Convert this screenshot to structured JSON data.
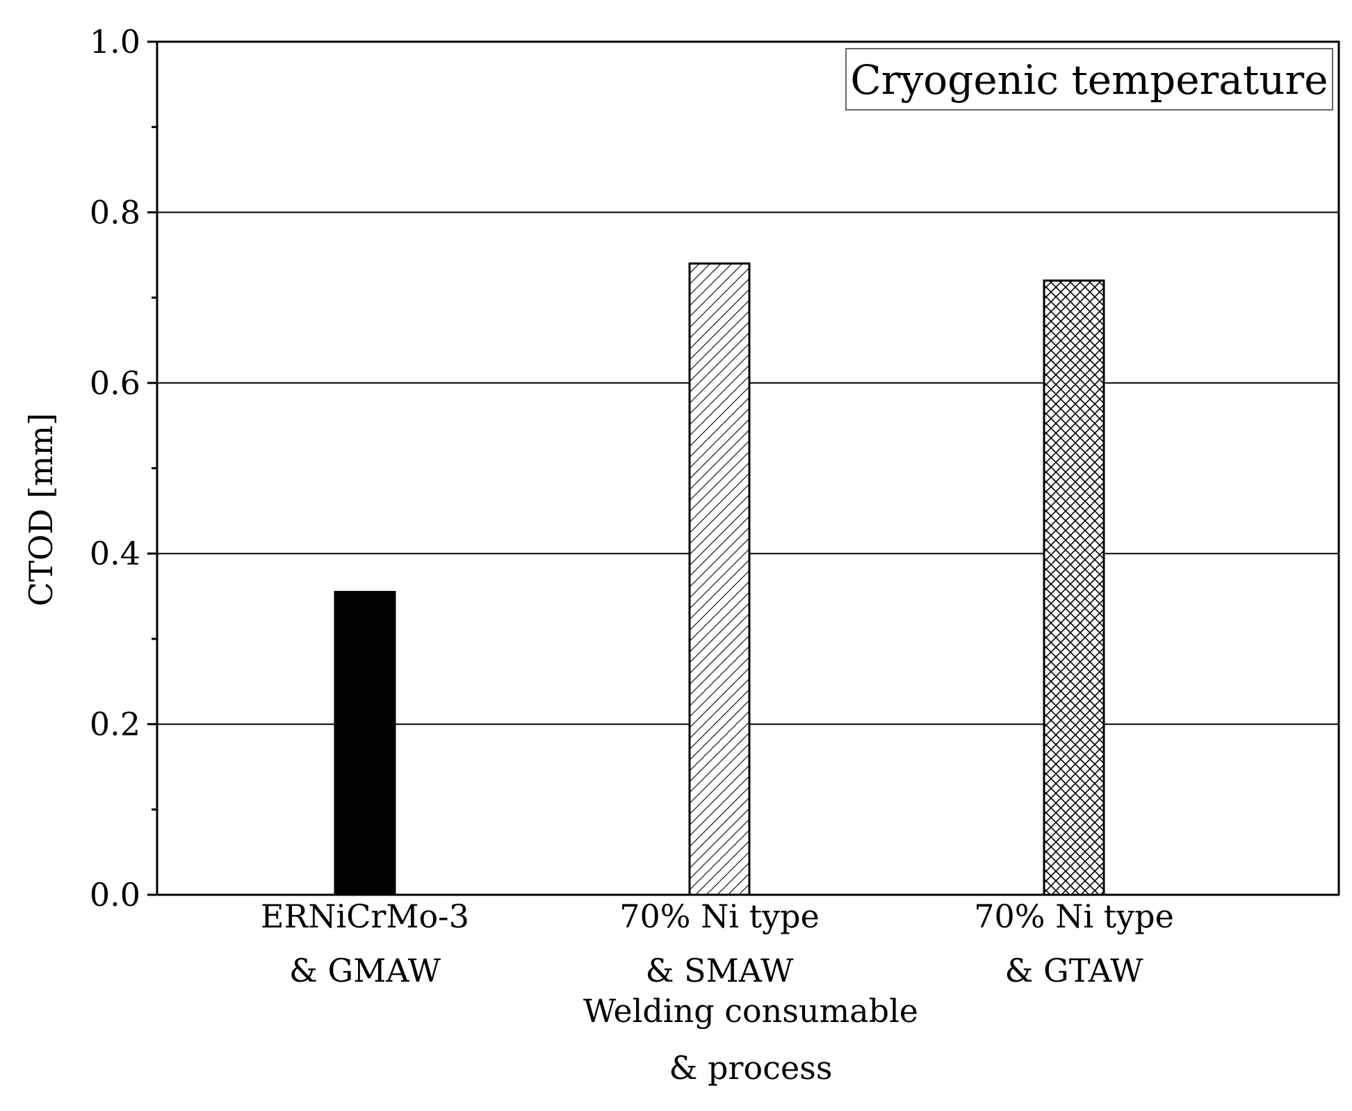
{
  "chart_data": {
    "type": "bar",
    "title": "",
    "annotation": "Cryogenic temperature",
    "categories": [
      [
        "ERNiCrMo-3",
        "& GMAW"
      ],
      [
        "70% Ni type",
        "& SMAW"
      ],
      [
        "70% Ni type",
        "& GTAW"
      ]
    ],
    "values": [
      0.355,
      0.74,
      0.72
    ],
    "bar_fills": [
      "solid-black",
      "diagonal-hatch",
      "cross-hatch"
    ],
    "xlabel": [
      "Welding consumable",
      "& process"
    ],
    "ylabel": "CTOD [mm]",
    "ylim": [
      0,
      1.0
    ],
    "yticks": [
      "0.0",
      "0.2",
      "0.4",
      "0.6",
      "0.8",
      "1.0"
    ],
    "grid": "horizontal at major ticks"
  }
}
